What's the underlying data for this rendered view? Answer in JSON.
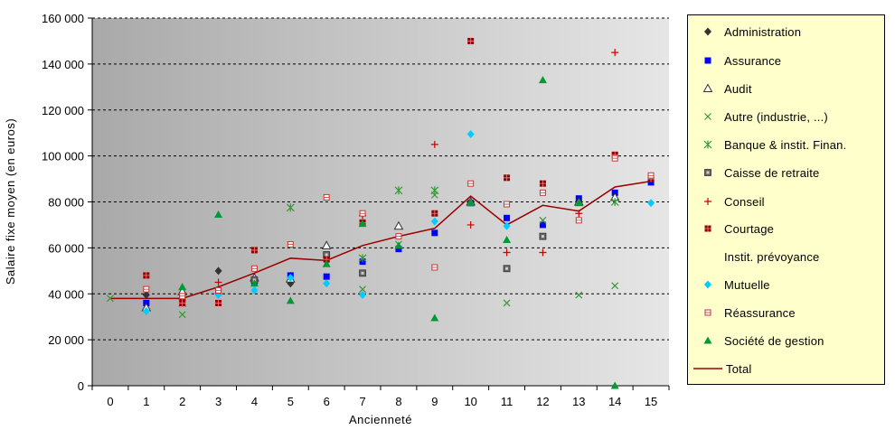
{
  "chart_data": {
    "type": "scatter",
    "title": "",
    "xlabel": "Ancienneté",
    "ylabel": "Salaire fixe moyen (en euros)",
    "xlim": [
      -0.5,
      15.5
    ],
    "ylim": [
      0,
      160000
    ],
    "x_ticks": [
      "0",
      "1",
      "2",
      "3",
      "4",
      "5",
      "6",
      "7",
      "8",
      "9",
      "10",
      "11",
      "12",
      "13",
      "14",
      "15"
    ],
    "y_ticks": [
      {
        "value": 0,
        "label": "0"
      },
      {
        "value": 20000,
        "label": "20 000"
      },
      {
        "value": 40000,
        "label": "40 000"
      },
      {
        "value": 60000,
        "label": "60 000"
      },
      {
        "value": 80000,
        "label": "80 000"
      },
      {
        "value": 100000,
        "label": "100 000"
      },
      {
        "value": 120000,
        "label": "120 000"
      },
      {
        "value": 140000,
        "label": "140 000"
      },
      {
        "value": 160000,
        "label": "160 000"
      }
    ],
    "grid": "horizontal dashed",
    "background": "gradient dark-gray to light-gray",
    "legend_position": "right",
    "series": [
      {
        "name": "Administration",
        "marker": "diamond",
        "color": "#333333",
        "points": [
          [
            1,
            39500
          ],
          [
            3,
            50000
          ],
          [
            5,
            44500
          ]
        ]
      },
      {
        "name": "Assurance",
        "marker": "square",
        "color": "#0000ff",
        "points": [
          [
            1,
            36000
          ],
          [
            2,
            38500
          ],
          [
            3,
            41000
          ],
          [
            4,
            45000
          ],
          [
            5,
            48000
          ],
          [
            6,
            47500
          ],
          [
            7,
            54000
          ],
          [
            8,
            59500
          ],
          [
            9,
            66500
          ],
          [
            10,
            79500
          ],
          [
            11,
            73000
          ],
          [
            12,
            70000
          ],
          [
            13,
            81500
          ],
          [
            14,
            84000
          ],
          [
            15,
            88500
          ]
        ]
      },
      {
        "name": "Audit",
        "marker": "triangle-open",
        "color": "#333333",
        "points": [
          [
            1,
            34000
          ],
          [
            2,
            41000
          ],
          [
            4,
            47000
          ],
          [
            5,
            46500
          ],
          [
            6,
            61000
          ],
          [
            8,
            69500
          ],
          [
            10,
            80000
          ],
          [
            13,
            80000
          ],
          [
            14,
            82000
          ]
        ]
      },
      {
        "name": "Autre (industrie, ...)",
        "marker": "x",
        "color": "#339933",
        "points": [
          [
            0,
            38000
          ],
          [
            2,
            31000
          ],
          [
            6,
            53000
          ],
          [
            7,
            42000
          ],
          [
            8,
            61500
          ],
          [
            9,
            83000
          ],
          [
            11,
            36000
          ],
          [
            12,
            72000
          ],
          [
            13,
            39500
          ],
          [
            14,
            43500
          ]
        ]
      },
      {
        "name": "Banque & instit. Finan.",
        "marker": "asterisk",
        "color": "#339933",
        "points": [
          [
            2,
            36000
          ],
          [
            5,
            77500
          ],
          [
            7,
            55500
          ],
          [
            8,
            85000
          ],
          [
            9,
            85000
          ],
          [
            14,
            80000
          ]
        ]
      },
      {
        "name": "Caisse de retraite",
        "marker": "square-gray",
        "color": "#666666",
        "points": [
          [
            4,
            46000
          ],
          [
            6,
            57000
          ],
          [
            7,
            49000
          ],
          [
            11,
            51000
          ],
          [
            12,
            65000
          ]
        ]
      },
      {
        "name": "Conseil",
        "marker": "plus",
        "color": "#cc0000",
        "points": [
          [
            3,
            45000
          ],
          [
            7,
            74000
          ],
          [
            9,
            105000
          ],
          [
            10,
            70000
          ],
          [
            11,
            58000
          ],
          [
            12,
            58000
          ],
          [
            13,
            75000
          ],
          [
            14,
            145000
          ]
        ]
      },
      {
        "name": "Courtage",
        "marker": "square-dark",
        "color": "#990000",
        "points": [
          [
            1,
            48000
          ],
          [
            2,
            36000
          ],
          [
            3,
            36000
          ],
          [
            4,
            59000
          ],
          [
            6,
            55000
          ],
          [
            7,
            71000
          ],
          [
            9,
            75000
          ],
          [
            10,
            150000
          ],
          [
            11,
            90500
          ],
          [
            12,
            88000
          ],
          [
            14,
            100500
          ],
          [
            15,
            90000
          ]
        ]
      },
      {
        "name": "Instit. prévoyance",
        "marker": "none",
        "color": "#000000",
        "points": []
      },
      {
        "name": "Mutuelle",
        "marker": "diamond",
        "color": "#00ccff",
        "points": [
          [
            1,
            32500
          ],
          [
            3,
            39500
          ],
          [
            4,
            41500
          ],
          [
            5,
            47000
          ],
          [
            6,
            44500
          ],
          [
            7,
            39500
          ],
          [
            9,
            71500
          ],
          [
            10,
            109500
          ],
          [
            11,
            69500
          ],
          [
            15,
            79500
          ]
        ]
      },
      {
        "name": "Réassurance",
        "marker": "square-open",
        "color": "#cc3333",
        "points": [
          [
            1,
            42000
          ],
          [
            2,
            39000
          ],
          [
            3,
            41500
          ],
          [
            4,
            51000
          ],
          [
            5,
            61500
          ],
          [
            6,
            82000
          ],
          [
            7,
            75000
          ],
          [
            8,
            65000
          ],
          [
            9,
            51500
          ],
          [
            10,
            88000
          ],
          [
            11,
            79000
          ],
          [
            12,
            84000
          ],
          [
            13,
            72000
          ],
          [
            14,
            99000
          ],
          [
            15,
            91500
          ]
        ]
      },
      {
        "name": "Société de gestion",
        "marker": "triangle",
        "color": "#009933",
        "points": [
          [
            2,
            43000
          ],
          [
            3,
            74500
          ],
          [
            4,
            44500
          ],
          [
            5,
            37000
          ],
          [
            6,
            53000
          ],
          [
            7,
            70500
          ],
          [
            8,
            61000
          ],
          [
            9,
            29500
          ],
          [
            10,
            79500
          ],
          [
            11,
            63500
          ],
          [
            12,
            133000
          ],
          [
            13,
            79500
          ],
          [
            14,
            0
          ]
        ]
      }
    ],
    "total": {
      "name": "Total",
      "color": "#990000",
      "points": [
        [
          0,
          38000
        ],
        [
          1,
          38000
        ],
        [
          2,
          38000
        ],
        [
          3,
          43000
        ],
        [
          4,
          49000
        ],
        [
          5,
          55500
        ],
        [
          6,
          54500
        ],
        [
          7,
          61000
        ],
        [
          8,
          65000
        ],
        [
          9,
          68500
        ],
        [
          10,
          82500
        ],
        [
          11,
          70000
        ],
        [
          12,
          78500
        ],
        [
          13,
          76000
        ],
        [
          14,
          86500
        ],
        [
          15,
          89000
        ]
      ]
    }
  }
}
